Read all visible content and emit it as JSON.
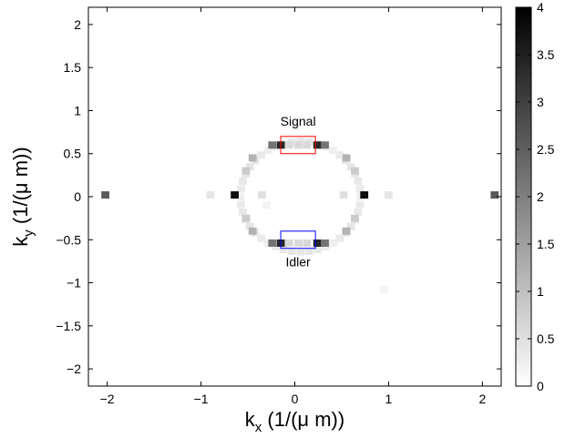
{
  "chart_data": {
    "type": "heatmap",
    "x_axis": {
      "label_main": "k",
      "label_sub": "x",
      "label_units": " (1/(μ m))",
      "range": [
        -2.2,
        2.2
      ],
      "ticks": [
        -2,
        -1,
        0,
        1,
        2
      ],
      "tick_labels": [
        "−2",
        "−1",
        "0",
        "1",
        "2"
      ]
    },
    "y_axis": {
      "label_main": "k",
      "label_sub": "y",
      "label_units": " (1/(μ m))",
      "range": [
        -2.2,
        2.2
      ],
      "ticks": [
        -2,
        -1.5,
        -1,
        -0.5,
        0,
        0.5,
        1,
        1.5,
        2
      ],
      "tick_labels": [
        "−2",
        "−1.5",
        "−1",
        "−0.5",
        "0",
        "0.5",
        "1",
        "1.5",
        "2"
      ]
    },
    "colorbar": {
      "range": [
        0,
        4
      ],
      "ticks": [
        0,
        0.5,
        1,
        1.5,
        2,
        2.5,
        3,
        3.5,
        4
      ],
      "tick_labels": [
        "0",
        "0.5",
        "1",
        "1.5",
        "2",
        "2.5",
        "3",
        "3.5",
        "4"
      ],
      "colormap": "gray-reversed"
    },
    "grid": false,
    "cell_size": 0.085,
    "ring": {
      "center_x": 0.06,
      "center_y": 0.0,
      "radius": 0.64,
      "base_intensity": 0.25
    },
    "cells": [
      {
        "x": -2.02,
        "y": 0.02,
        "v": 2.6
      },
      {
        "x": 2.13,
        "y": 0.02,
        "v": 2.6
      },
      {
        "x": -0.64,
        "y": 0.02,
        "v": 3.8
      },
      {
        "x": 0.74,
        "y": 0.02,
        "v": 3.8
      },
      {
        "x": -0.9,
        "y": 0.02,
        "v": 0.4
      },
      {
        "x": 1.0,
        "y": 0.02,
        "v": 0.4
      },
      {
        "x": -0.35,
        "y": 0.02,
        "v": 0.5
      },
      {
        "x": 0.52,
        "y": 0.02,
        "v": 0.5
      },
      {
        "x": -0.15,
        "y": 0.6,
        "v": 3.4
      },
      {
        "x": 0.24,
        "y": 0.6,
        "v": 3.4
      },
      {
        "x": -0.24,
        "y": 0.6,
        "v": 2.2
      },
      {
        "x": 0.32,
        "y": 0.6,
        "v": 2.2
      },
      {
        "x": -0.15,
        "y": -0.54,
        "v": 3.4
      },
      {
        "x": 0.24,
        "y": -0.54,
        "v": 3.4
      },
      {
        "x": -0.24,
        "y": -0.54,
        "v": 2.2
      },
      {
        "x": 0.32,
        "y": -0.54,
        "v": 2.2
      },
      {
        "x": -0.06,
        "y": 0.6,
        "v": 0.6
      },
      {
        "x": 0.04,
        "y": 0.6,
        "v": 0.6
      },
      {
        "x": 0.13,
        "y": 0.6,
        "v": 0.6
      },
      {
        "x": -0.06,
        "y": -0.54,
        "v": 0.6
      },
      {
        "x": 0.04,
        "y": -0.54,
        "v": 0.6
      },
      {
        "x": 0.13,
        "y": -0.54,
        "v": 0.6
      },
      {
        "x": -0.45,
        "y": 0.45,
        "v": 1.2
      },
      {
        "x": 0.55,
        "y": 0.45,
        "v": 1.2
      },
      {
        "x": -0.45,
        "y": -0.4,
        "v": 1.2
      },
      {
        "x": 0.55,
        "y": -0.4,
        "v": 1.2
      },
      {
        "x": -0.52,
        "y": 0.3,
        "v": 0.8
      },
      {
        "x": 0.64,
        "y": 0.3,
        "v": 0.8
      },
      {
        "x": -0.52,
        "y": -0.25,
        "v": 0.8
      },
      {
        "x": 0.64,
        "y": -0.25,
        "v": 0.8
      },
      {
        "x": 0.0,
        "y": 0.8,
        "v": 0.15
      },
      {
        "x": 0.95,
        "y": -1.08,
        "v": 0.15
      },
      {
        "x": -0.3,
        "y": -0.1,
        "v": 0.2
      }
    ],
    "annotations": [
      {
        "id": "signal",
        "label": "Signal",
        "x0": -0.15,
        "x1": 0.22,
        "y0": 0.5,
        "y1": 0.7,
        "color": "#ff0000"
      },
      {
        "id": "idler",
        "label": "Idler",
        "x0": -0.15,
        "x1": 0.22,
        "y0": -0.6,
        "y1": -0.4,
        "color": "#0000ff"
      }
    ]
  }
}
